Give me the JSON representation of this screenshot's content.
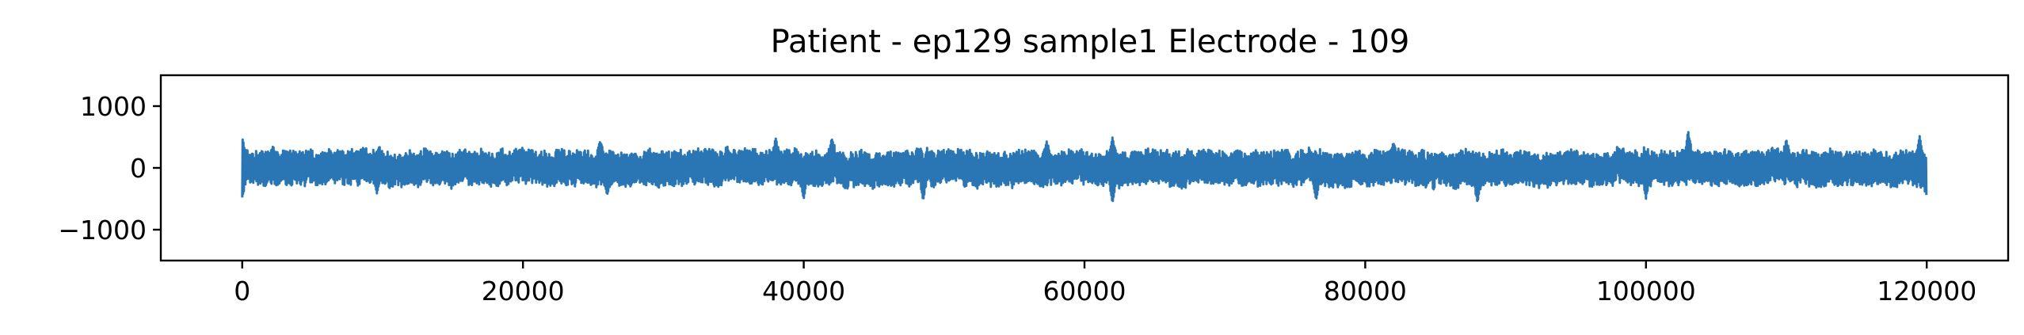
{
  "chart_data": {
    "type": "line",
    "title": "Patient - ep129 sample1 Electrode - 109",
    "xlabel": "",
    "ylabel": "",
    "xlim": [
      -5800,
      125800
    ],
    "ylim": [
      -1500,
      1500
    ],
    "x_ticks": [
      0,
      20000,
      40000,
      60000,
      80000,
      100000,
      120000
    ],
    "x_tick_labels": [
      "0",
      "20000",
      "40000",
      "60000",
      "80000",
      "100000",
      "120000"
    ],
    "y_ticks": [
      1000,
      0,
      -1000
    ],
    "y_tick_labels": [
      "1000",
      "0",
      "−1000"
    ],
    "grid": false,
    "legend": "none",
    "series": [
      {
        "color": "#2a76b4",
        "x_range": [
          0,
          120000
        ],
        "typical_amplitude": 280,
        "peaks": [
          {
            "x": 0,
            "y": 480
          },
          {
            "x": 0,
            "y": -480
          },
          {
            "x": 2200,
            "y": 350
          },
          {
            "x": 9600,
            "y": -420
          },
          {
            "x": 25500,
            "y": 430
          },
          {
            "x": 26000,
            "y": -430
          },
          {
            "x": 38000,
            "y": 480
          },
          {
            "x": 42000,
            "y": 470
          },
          {
            "x": 40000,
            "y": -500
          },
          {
            "x": 48500,
            "y": -520
          },
          {
            "x": 57300,
            "y": 430
          },
          {
            "x": 62000,
            "y": 500
          },
          {
            "x": 62000,
            "y": -560
          },
          {
            "x": 76500,
            "y": -520
          },
          {
            "x": 82000,
            "y": 400
          },
          {
            "x": 88000,
            "y": -560
          },
          {
            "x": 100000,
            "y": -500
          },
          {
            "x": 103000,
            "y": 600
          },
          {
            "x": 110000,
            "y": 450
          },
          {
            "x": 119500,
            "y": 520
          },
          {
            "x": 120000,
            "y": -460
          }
        ]
      }
    ]
  }
}
